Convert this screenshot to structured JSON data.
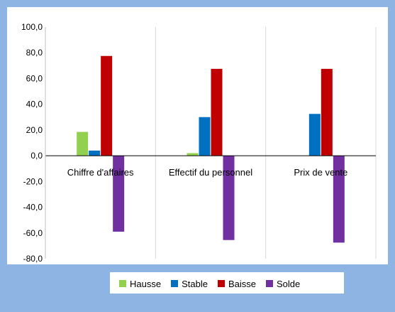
{
  "chart_data": {
    "type": "bar",
    "categories": [
      "Chiffre d'affaires",
      "Effectif du personnel",
      "Prix de vente"
    ],
    "series": [
      {
        "name": "Hausse",
        "color": "#92d050",
        "values": [
          18.5,
          2.0,
          0.0
        ]
      },
      {
        "name": "Stable",
        "color": "#0070c0",
        "values": [
          4.0,
          30.0,
          32.5
        ]
      },
      {
        "name": "Baisse",
        "color": "#c00000",
        "values": [
          77.5,
          67.5,
          67.5
        ]
      },
      {
        "name": "Solde",
        "color": "#7030a0",
        "values": [
          -59.0,
          -65.5,
          -67.5
        ]
      }
    ],
    "ylim": [
      -80,
      100
    ],
    "yticks": [
      "100,0",
      "80,0",
      "60,0",
      "40,0",
      "20,0",
      "0,0",
      "-20,0",
      "-40,0",
      "-60,0",
      "-80,0"
    ],
    "ytick_values": [
      100,
      80,
      60,
      40,
      20,
      0,
      -20,
      -40,
      -60,
      -80
    ],
    "legend_position": "bottom",
    "grid": "vertical"
  }
}
